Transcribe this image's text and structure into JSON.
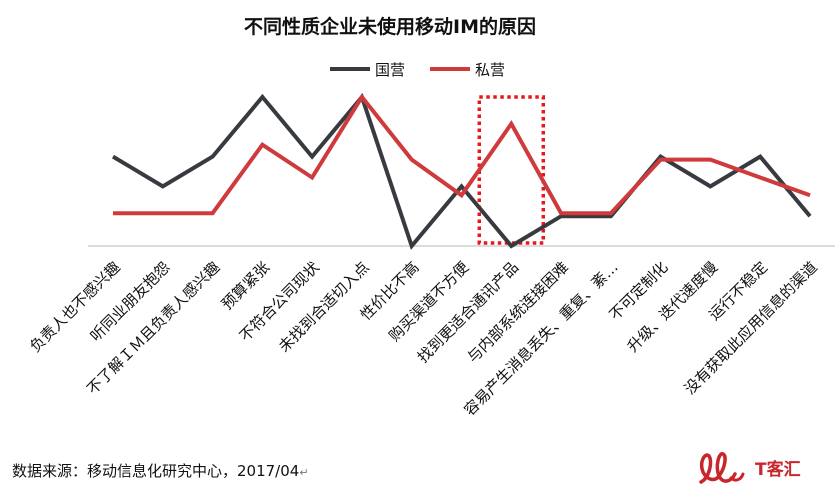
{
  "chart_data": {
    "type": "line",
    "title": "不同性质企业未使用移动IM的原因",
    "categories": [
      "负责人也不感兴趣",
      "听同业朋友抱怨",
      "不了解ＩＭ且负责人感兴趣",
      "预算紧张",
      "不符合公司现状",
      "未找到合适切入点",
      "性价比不高",
      "购买渠道不方便",
      "找到更适合通讯产品",
      "与内部系统连接困难",
      "容易产生消息丢失、重复、紊…",
      "不可定制化",
      "升级、迭代速度慢",
      "运行不稳定",
      "没有获取此应用信息的渠道"
    ],
    "series": [
      {
        "name": "国营",
        "color": "#373b40",
        "values": [
          3,
          2,
          3,
          5,
          3,
          5,
          0,
          2,
          0,
          1,
          1,
          3,
          2,
          3,
          1
        ]
      },
      {
        "name": "私营",
        "color": "#cf3a3d",
        "values": [
          1.1,
          1.1,
          1.1,
          3.4,
          2.3,
          5.0,
          2.9,
          1.7,
          4.1,
          1.1,
          1.1,
          2.9,
          2.9,
          2.3,
          1.7
        ]
      }
    ],
    "ylim": [
      0,
      5
    ],
    "legend": "top-center",
    "grid": false,
    "highlight": {
      "category_index": 8,
      "style": "red dotted box"
    }
  },
  "source": "数据来源：移动信息化研究中心，2017/04",
  "return_mark": "↵",
  "logo": {
    "text": "T客汇",
    "color": "#c8262b"
  }
}
